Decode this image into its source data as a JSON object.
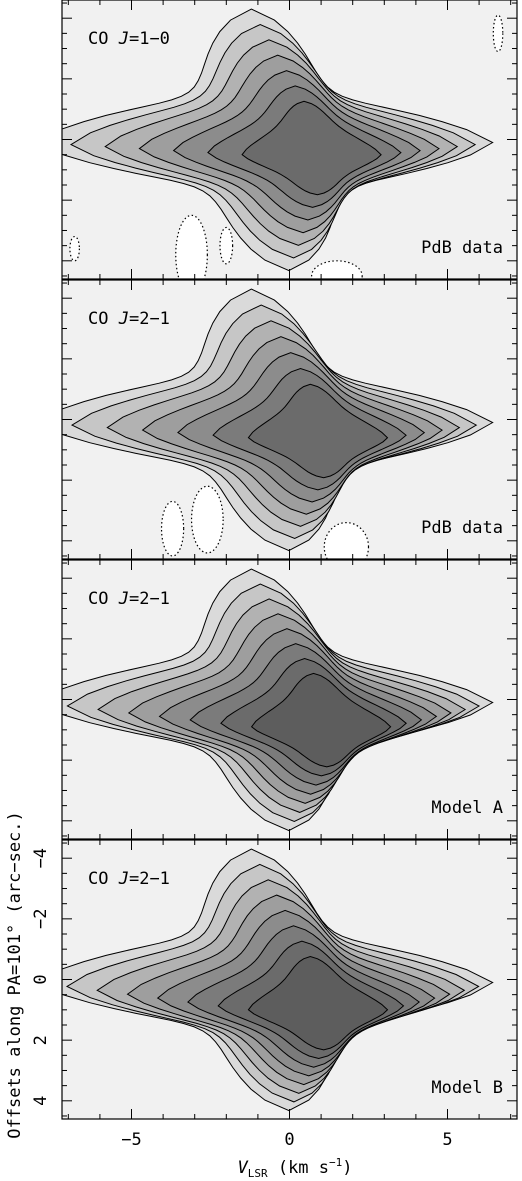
{
  "chart_data": {
    "type": "contour",
    "x_axis": {
      "label_prefix": "V",
      "label_subscript": "LSR",
      "label_suffix": " (km s",
      "label_exponent": "−1",
      "label_close": ")",
      "range": [
        -7.2,
        7.2
      ],
      "major_ticks": [
        -5,
        0,
        5
      ],
      "tick_labels": [
        "−5",
        "0",
        "5"
      ],
      "minor_step": 1
    },
    "y_axis": {
      "label": "Offsets along PA=101° (arc−sec.)",
      "range": [
        -4.6,
        4.6
      ],
      "inverted": true,
      "major_ticks": [
        -4,
        -2,
        0,
        2,
        4
      ],
      "tick_labels": [
        "−4",
        "−2",
        "0",
        "2",
        "4"
      ],
      "minor_step": 1
    },
    "panels": [
      {
        "line_prefix": "CO ",
        "line_J": "J",
        "line_transition": "=1−0",
        "caption": "PdB data",
        "dotted_negative": true,
        "peak": {
          "x": 0.7,
          "y": 0.5
        },
        "levels": 7
      },
      {
        "line_prefix": "CO ",
        "line_J": "J",
        "line_transition": "=2−1",
        "caption": "PdB data",
        "dotted_negative": true,
        "peak": {
          "x": 0.9,
          "y": 0.6
        },
        "levels": 7
      },
      {
        "line_prefix": "CO ",
        "line_J": "J",
        "line_transition": "=2−1",
        "caption": "Model A",
        "dotted_negative": false,
        "peak": {
          "x": 1.0,
          "y": 0.9
        },
        "levels": 8
      },
      {
        "line_prefix": "CO ",
        "line_J": "J",
        "line_transition": "=2−1",
        "caption": "Model B",
        "dotted_negative": false,
        "peak": {
          "x": 0.9,
          "y": 1.0
        },
        "levels": 8
      }
    ]
  }
}
